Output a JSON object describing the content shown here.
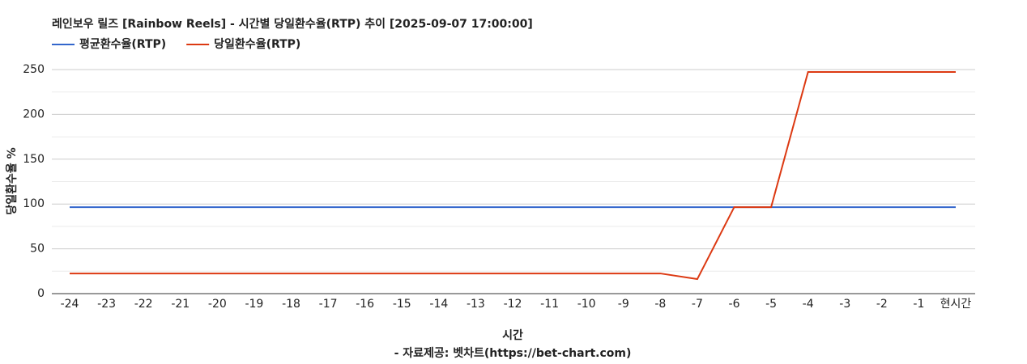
{
  "chart_data": {
    "type": "line",
    "title": "레인보우 릴즈 [Rainbow Reels] - 시간별 당일환수율(RTP) 추이 [2025-09-07 17:00:00]",
    "x_label": "시간",
    "y_label": "당일환수율 %",
    "source": "- 자료제공: 벳차트(https://bet-chart.com)",
    "categories": [
      "-24",
      "-23",
      "-22",
      "-21",
      "-20",
      "-19",
      "-18",
      "-17",
      "-16",
      "-15",
      "-14",
      "-13",
      "-12",
      "-11",
      "-10",
      "-9",
      "-8",
      "-7",
      "-6",
      "-5",
      "-4",
      "-3",
      "-2",
      "-1",
      "현시간"
    ],
    "series": [
      {
        "name": "평균환수율(RTP)",
        "color": "#3366cc",
        "values": [
          96.5,
          96.5,
          96.5,
          96.5,
          96.5,
          96.5,
          96.5,
          96.5,
          96.5,
          96.5,
          96.5,
          96.5,
          96.5,
          96.5,
          96.5,
          96.5,
          96.5,
          96.5,
          96.5,
          96.5,
          96.5,
          96.5,
          96.5,
          96.5,
          96.5
        ]
      },
      {
        "name": "당일환수율(RTP)",
        "color": "#dc3912",
        "values": [
          22.5,
          22.5,
          22.5,
          22.5,
          22.5,
          22.5,
          22.5,
          22.5,
          22.5,
          22.5,
          22.5,
          22.5,
          22.5,
          22.5,
          22.5,
          22.5,
          22.5,
          16.2,
          96.5,
          96.5,
          247.3,
          247.3,
          247.3,
          247.3,
          247.3
        ]
      }
    ],
    "ylim": [
      0,
      250
    ],
    "yticks": [
      0,
      50,
      100,
      150,
      200,
      250
    ],
    "grid": true,
    "legend": "top"
  }
}
